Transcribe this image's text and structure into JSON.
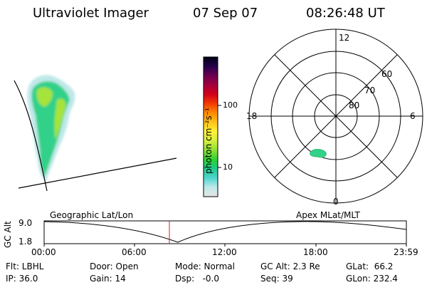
{
  "header": {
    "title": "Ultraviolet Imager",
    "date": "07 Sep 07",
    "time": "08:26:48 UT"
  },
  "colorbar": {
    "unit_label": "photon cm⁻²s⁻¹",
    "ticks": [
      "100",
      "10"
    ]
  },
  "polar": {
    "mlt_labels": {
      "top": "12",
      "left": "18",
      "right": "6",
      "bottom": "0"
    },
    "lat_labels": [
      "60",
      "70",
      "80"
    ]
  },
  "timeline": {
    "y_label": "GC Alt",
    "y_ticks": [
      "9.0",
      "1.8"
    ],
    "left_title": "Geographic Lat/Lon",
    "right_title": "Apex MLat/MLT",
    "x_ticks": [
      "00:00",
      "06:00",
      "12:00",
      "18:00",
      "23:59"
    ],
    "marker_time": "08:26:48"
  },
  "info": {
    "row1": {
      "filter": "Flt: LBHL",
      "door": "Door: Open",
      "mode": "Mode: Normal",
      "gc_alt": "GC Alt: 2.3 Re",
      "glat": "GLat:  66.2"
    },
    "row2": {
      "ip": "IP: 36.0",
      "gain": "Gain: 14",
      "dsp": "Dsp:   -0.0",
      "seq": "Seq: 39",
      "glon": "GLon: 232.4"
    }
  },
  "colors": {
    "colorbar_stops": [
      "#e6e6e6",
      "#bfe8e8",
      "#4fd6cf",
      "#21c98a",
      "#2fd22f",
      "#8fe038",
      "#d6ef3c",
      "#fff23a",
      "#ffc21a",
      "#ff8a00",
      "#f23a00",
      "#d1001b",
      "#a3003e",
      "#6a0050",
      "#25004a",
      "#000014"
    ],
    "aurora_low": "#bfe8e8",
    "aurora_mid": "#33d18a",
    "aurora_high": "#a6e33a",
    "marker": "#cc2222"
  }
}
